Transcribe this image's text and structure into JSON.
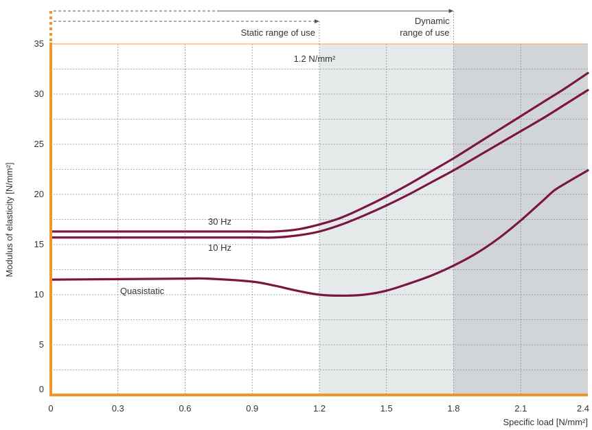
{
  "chart_data": {
    "type": "line",
    "xlabel": "Specific load [N/mm²]",
    "ylabel": "Modulus of elasticity [N/mm²]",
    "xlim": [
      0,
      2.4
    ],
    "ylim": [
      0,
      35
    ],
    "x_ticks": [
      "0",
      "0.3",
      "0.6",
      "0.9",
      "1.2",
      "1.5",
      "1.8",
      "2.1",
      "2.4"
    ],
    "y_ticks": [
      "0",
      "5",
      "10",
      "15",
      "20",
      "25",
      "30",
      "35"
    ],
    "grid": true,
    "series": [
      {
        "name": "30 Hz",
        "color": "#7a1640",
        "x": [
          0,
          0.3,
          0.6,
          0.9,
          1.0,
          1.1,
          1.2,
          1.3,
          1.4,
          1.5,
          1.6,
          1.7,
          1.8,
          1.9,
          2.0,
          2.1,
          2.2,
          2.3,
          2.4
        ],
        "y": [
          16.3,
          16.3,
          16.3,
          16.3,
          16.3,
          16.5,
          17.0,
          17.7,
          18.7,
          19.8,
          21.0,
          22.3,
          23.6,
          25.0,
          26.4,
          27.8,
          29.2,
          30.6,
          32.1
        ]
      },
      {
        "name": "10 Hz",
        "color": "#7a1640",
        "x": [
          0,
          0.3,
          0.6,
          0.9,
          1.0,
          1.1,
          1.2,
          1.3,
          1.4,
          1.5,
          1.6,
          1.7,
          1.8,
          1.9,
          2.0,
          2.1,
          2.2,
          2.3,
          2.4
        ],
        "y": [
          15.7,
          15.7,
          15.7,
          15.7,
          15.7,
          15.9,
          16.3,
          17.0,
          17.9,
          18.9,
          20.0,
          21.2,
          22.4,
          23.7,
          25.0,
          26.3,
          27.6,
          29.0,
          30.4
        ]
      },
      {
        "name": "Quasistatic",
        "color": "#7a1640",
        "x": [
          0,
          0.3,
          0.6,
          0.7,
          0.9,
          1.0,
          1.1,
          1.2,
          1.3,
          1.4,
          1.5,
          1.6,
          1.7,
          1.8,
          1.9,
          2.0,
          2.1,
          2.2,
          2.25,
          2.3,
          2.4
        ],
        "y": [
          11.5,
          11.55,
          11.6,
          11.6,
          11.3,
          10.9,
          10.4,
          10.0,
          9.9,
          10.0,
          10.4,
          11.1,
          11.9,
          12.9,
          14.1,
          15.6,
          17.4,
          19.4,
          20.4,
          21.1,
          22.4
        ]
      }
    ],
    "annotations": {
      "static_range": "Static range of use",
      "dynamic_range_line1": "Dynamic",
      "dynamic_range_line2": "range of use",
      "threshold": "1.2 N/mm²",
      "series_30hz": "30 Hz",
      "series_10hz": "10 Hz",
      "series_quasistatic": "Quasistatic"
    },
    "colors": {
      "axis": "#f0952a",
      "static_band": "#e6e9ea",
      "dynamic_band": "#d2d5d8",
      "curve": "#7a1640"
    }
  }
}
